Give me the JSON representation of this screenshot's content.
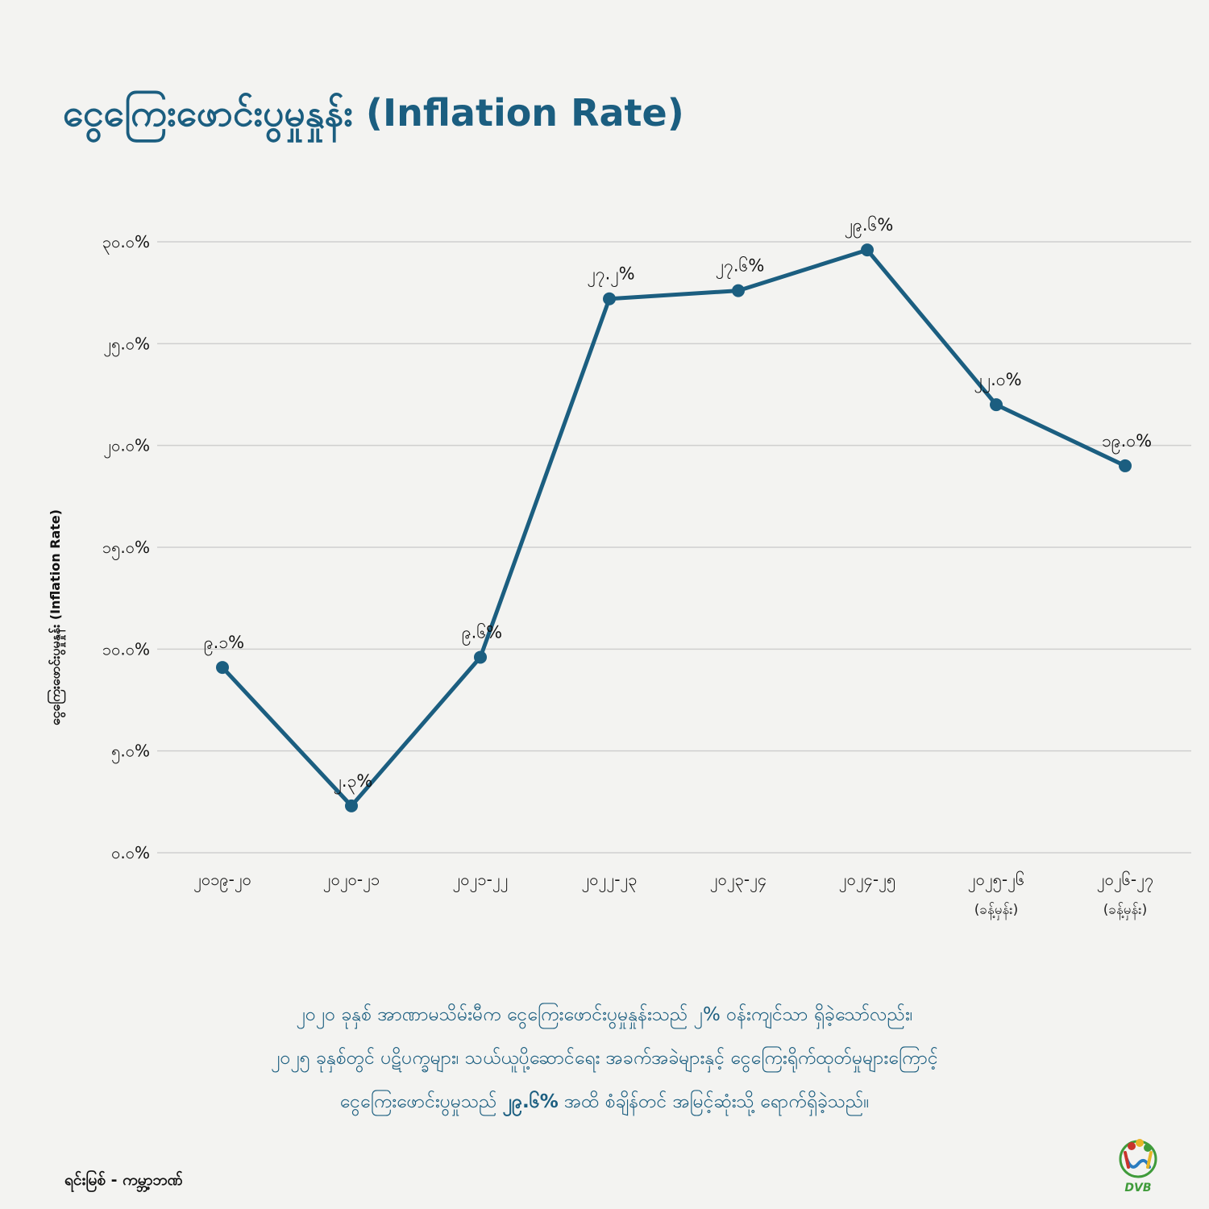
{
  "title": "ငွေကြေးဖောင်းပွမှုနှုန်း (Inflation Rate)",
  "chart_data": {
    "type": "line",
    "ylabel": "ငွေကြေးဖောင်းပွမှုနှုန်း (Inflation Rate)",
    "ylim": [
      0,
      35
    ],
    "yticks": [
      0,
      5,
      10,
      15,
      20,
      25,
      30
    ],
    "ytick_labels": [
      "၀.၀%",
      "၅.၀%",
      "၁၀.၀%",
      "၁၅.၀%",
      "၂၀.၀%",
      "၂၅.၀%",
      "၃၀.၀%"
    ],
    "grid": true,
    "categories": [
      "၂၀၁၉-၂၀",
      "၂၀၂၀-၂၁",
      "၂၀၂၁-၂၂",
      "၂၀၂၂-၂၃",
      "၂၀၂၃-၂၄",
      "၂၀၂၄-၂၅",
      "၂၀၂၅-၂၆",
      "၂၀၂၆-၂၇"
    ],
    "category_notes": [
      "",
      "",
      "",
      "",
      "",
      "",
      "(ခန့်မှန်း)",
      "(ခန့်မှန်း)"
    ],
    "series": [
      {
        "color": "#1b5e80",
        "values": [
          9.1,
          2.3,
          9.6,
          27.2,
          27.6,
          29.6,
          22.0,
          19.0
        ],
        "labels": [
          "၉.၁%",
          "၂.၃%",
          "၉.၆%",
          "၂၇.၂%",
          "၂၇.၆%",
          "၂၉.၆%",
          "၂၂.၀%",
          "၁၉.၀%"
        ]
      }
    ]
  },
  "summary": {
    "line1": "၂၀၂၀ ခုနှစ် အာဏာမသိမ်းမီက ငွေကြေးဖောင်းပွမှုနှုန်းသည် ၂% ဝန်းကျင်သာ ရှိခဲ့သော်လည်း၊",
    "line2": "၂၀၂၅ ခုနှစ်တွင် ပဋိပက္ခများ၊ သယ်ယူပို့ဆောင်ရေး အခက်အခဲများနှင့် ငွေကြေးရိုက်ထုတ်မှုများကြောင့်",
    "line3_pre": "ငွေကြေးဖောင်းပွမှုသည် ",
    "line3_highlight": "၂၉.၆%",
    "line3_post": " အထိ စံချိန်တင် အမြင့်ဆုံးသို့ ရောက်ရှိခဲ့သည်။"
  },
  "source": "ရင်းမြစ် - ကမ္ဘာ့ဘဏ်",
  "logo": {
    "text": "DVB",
    "icon": "dvb-logo-icon",
    "colors": [
      "#c8342c",
      "#e8b627",
      "#3f9b3a",
      "#2a7cc0"
    ]
  }
}
